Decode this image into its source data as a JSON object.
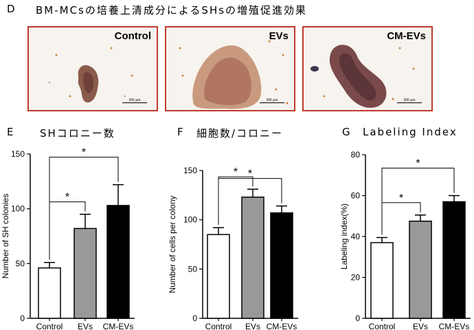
{
  "panel_d": {
    "letter": "D",
    "title": "BM-MCsの培養上清成分によるSHsの増殖促進効果",
    "images": [
      {
        "caption": "Control",
        "scale": "200 μm"
      },
      {
        "caption": "EVs",
        "scale": "200 μm"
      },
      {
        "caption": "CM-EVs",
        "scale": "200 μm"
      }
    ]
  },
  "panel_headers": [
    {
      "letter": "E",
      "title": "SHコロニー数"
    },
    {
      "letter": "F",
      "title": "細胞数/コロニー"
    },
    {
      "letter": "G",
      "title": "Labeling Index"
    }
  ],
  "colors": {
    "control": "#ffffff",
    "evs": "#999999",
    "cm_evs": "#000000",
    "frame": "#c0392b"
  },
  "chart_data": [
    {
      "type": "bar",
      "categories": [
        "Control",
        "EVs",
        "CM-EVs"
      ],
      "values": [
        46,
        82,
        103
      ],
      "errors": [
        5,
        13,
        19
      ],
      "ylabel": "Number of SH colonies",
      "ylim": [
        0,
        150
      ],
      "yticks": [
        "0",
        "50",
        "100",
        "150"
      ],
      "significance": [
        {
          "pair": [
            "Control",
            "EVs"
          ],
          "label": "*"
        },
        {
          "pair": [
            "Control",
            "CM-EVs"
          ],
          "label": "*"
        }
      ]
    },
    {
      "type": "bar",
      "categories": [
        "Control",
        "EVs",
        "CM-EVs"
      ],
      "values": [
        85,
        123,
        107
      ],
      "errors": [
        7,
        8,
        7
      ],
      "ylabel": "Number of cells per colony",
      "ylim": [
        0,
        150
      ],
      "yticks": [
        "0",
        "50",
        "100",
        "150"
      ],
      "significance": [
        {
          "pair": [
            "Control",
            "EVs"
          ],
          "label": "*"
        },
        {
          "pair": [
            "Control",
            "CM-EVs"
          ],
          "label": "*"
        }
      ]
    },
    {
      "type": "bar",
      "categories": [
        "Control",
        "EVs",
        "CM-EVs"
      ],
      "values": [
        37,
        47.5,
        57
      ],
      "errors": [
        2.5,
        3,
        3
      ],
      "ylabel": "Labeling index(%)",
      "ylim": [
        0,
        80
      ],
      "yticks": [
        "0",
        "20",
        "40",
        "60",
        "80"
      ],
      "significance": [
        {
          "pair": [
            "Control",
            "EVs"
          ],
          "label": "*"
        },
        {
          "pair": [
            "Control",
            "CM-EVs"
          ],
          "label": "*"
        }
      ]
    }
  ]
}
